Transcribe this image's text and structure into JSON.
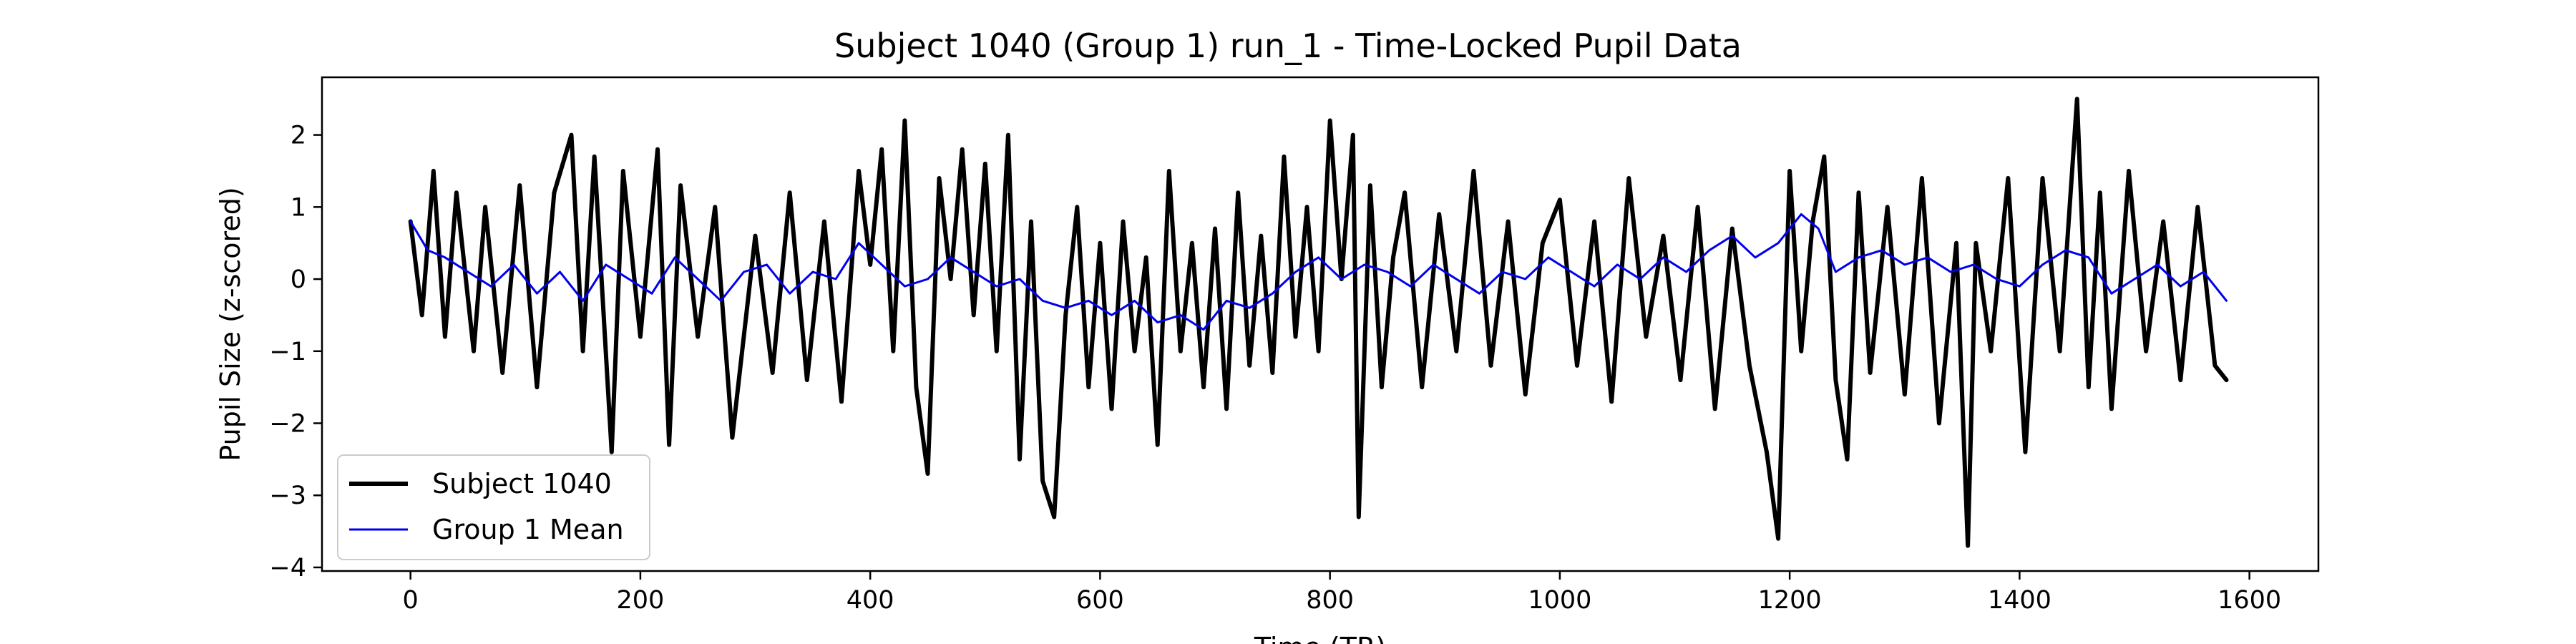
{
  "chart_data": {
    "type": "line",
    "title": "Subject 1040 (Group 1) run_1 - Time-Locked Pupil Data",
    "xlabel": "Time (TR)",
    "ylabel": "Pupil Size (z-scored)",
    "xlim": [
      -77,
      1660
    ],
    "ylim": [
      -4.05,
      2.8
    ],
    "xticks": [
      0,
      200,
      400,
      600,
      800,
      1000,
      1200,
      1400,
      1600
    ],
    "yticks": [
      -4,
      -3,
      -2,
      -1,
      0,
      1,
      2
    ],
    "grid": false,
    "legend_position": "lower-left",
    "colors": {
      "subject": "#000000",
      "group_mean": "#0000ee",
      "axes": "#000000"
    },
    "series": [
      {
        "name": "Subject 1040",
        "color": "#000000",
        "x": [
          0,
          10,
          20,
          30,
          40,
          55,
          65,
          80,
          95,
          110,
          125,
          140,
          150,
          160,
          175,
          185,
          200,
          215,
          225,
          235,
          250,
          265,
          280,
          300,
          315,
          330,
          345,
          360,
          375,
          390,
          400,
          410,
          420,
          430,
          440,
          450,
          460,
          470,
          480,
          490,
          500,
          510,
          520,
          530,
          540,
          550,
          560,
          570,
          580,
          590,
          600,
          610,
          620,
          630,
          640,
          650,
          660,
          670,
          680,
          690,
          700,
          710,
          720,
          730,
          740,
          750,
          760,
          770,
          780,
          790,
          800,
          810,
          820,
          825,
          835,
          845,
          855,
          865,
          880,
          895,
          910,
          925,
          940,
          955,
          970,
          985,
          1000,
          1015,
          1030,
          1045,
          1060,
          1075,
          1090,
          1105,
          1120,
          1135,
          1150,
          1165,
          1180,
          1190,
          1200,
          1210,
          1220,
          1230,
          1240,
          1250,
          1260,
          1270,
          1285,
          1300,
          1315,
          1330,
          1345,
          1355,
          1362,
          1375,
          1390,
          1405,
          1420,
          1435,
          1450,
          1460,
          1470,
          1480,
          1495,
          1510,
          1525,
          1540,
          1555,
          1570,
          1580
        ],
        "y": [
          0.8,
          -0.5,
          1.5,
          -0.8,
          1.2,
          -1.0,
          1.0,
          -1.3,
          1.3,
          -1.5,
          1.2,
          2.0,
          -1.0,
          1.7,
          -2.4,
          1.5,
          -0.8,
          1.8,
          -2.3,
          1.3,
          -0.8,
          1.0,
          -2.2,
          0.6,
          -1.3,
          1.2,
          -1.4,
          0.8,
          -1.7,
          1.5,
          0.2,
          1.8,
          -1.0,
          2.2,
          -1.5,
          -2.7,
          1.4,
          0.0,
          1.8,
          -0.5,
          1.6,
          -1.0,
          2.0,
          -2.5,
          0.8,
          -2.8,
          -3.3,
          -0.5,
          1.0,
          -1.5,
          0.5,
          -1.8,
          0.8,
          -1.0,
          0.3,
          -2.3,
          1.5,
          -1.0,
          0.5,
          -1.5,
          0.7,
          -1.8,
          1.2,
          -1.2,
          0.6,
          -1.3,
          1.7,
          -0.8,
          1.0,
          -1.0,
          2.2,
          0.0,
          2.0,
          -3.3,
          1.3,
          -1.5,
          0.3,
          1.2,
          -1.5,
          0.9,
          -1.0,
          1.5,
          -1.2,
          0.8,
          -1.6,
          0.5,
          1.1,
          -1.2,
          0.8,
          -1.7,
          1.4,
          -0.8,
          0.6,
          -1.4,
          1.0,
          -1.8,
          0.7,
          -1.2,
          -2.4,
          -3.6,
          1.5,
          -1.0,
          0.8,
          1.7,
          -1.4,
          -2.5,
          1.2,
          -1.3,
          1.0,
          -1.6,
          1.4,
          -2.0,
          0.5,
          -3.7,
          0.5,
          -1.0,
          1.4,
          -2.4,
          1.4,
          -1.0,
          2.5,
          -1.5,
          1.2,
          -1.8,
          1.5,
          -1.0,
          0.8,
          -1.4,
          1.0,
          -1.2,
          -1.4
        ]
      },
      {
        "name": "Group 1 Mean",
        "color": "#0000ee",
        "x": [
          0,
          15,
          30,
          50,
          70,
          90,
          110,
          130,
          150,
          170,
          190,
          210,
          230,
          250,
          270,
          290,
          310,
          330,
          350,
          370,
          390,
          410,
          430,
          450,
          470,
          490,
          510,
          530,
          550,
          570,
          590,
          610,
          630,
          650,
          670,
          690,
          710,
          730,
          750,
          770,
          790,
          810,
          830,
          850,
          870,
          890,
          910,
          930,
          950,
          970,
          990,
          1010,
          1030,
          1050,
          1070,
          1090,
          1110,
          1130,
          1150,
          1170,
          1190,
          1210,
          1225,
          1240,
          1260,
          1280,
          1300,
          1320,
          1340,
          1360,
          1380,
          1400,
          1420,
          1440,
          1460,
          1480,
          1500,
          1520,
          1540,
          1560,
          1580
        ],
        "y": [
          0.8,
          0.4,
          0.3,
          0.1,
          -0.1,
          0.2,
          -0.2,
          0.1,
          -0.3,
          0.2,
          0.0,
          -0.2,
          0.3,
          0.0,
          -0.3,
          0.1,
          0.2,
          -0.2,
          0.1,
          0.0,
          0.5,
          0.2,
          -0.1,
          0.0,
          0.3,
          0.1,
          -0.1,
          0.0,
          -0.3,
          -0.4,
          -0.3,
          -0.5,
          -0.3,
          -0.6,
          -0.5,
          -0.7,
          -0.3,
          -0.4,
          -0.2,
          0.1,
          0.3,
          0.0,
          0.2,
          0.1,
          -0.1,
          0.2,
          0.0,
          -0.2,
          0.1,
          0.0,
          0.3,
          0.1,
          -0.1,
          0.2,
          0.0,
          0.3,
          0.1,
          0.4,
          0.6,
          0.3,
          0.5,
          0.9,
          0.7,
          0.1,
          0.3,
          0.4,
          0.2,
          0.3,
          0.1,
          0.2,
          0.0,
          -0.1,
          0.2,
          0.4,
          0.3,
          -0.2,
          0.0,
          0.2,
          -0.1,
          0.1,
          -0.3
        ]
      }
    ]
  }
}
